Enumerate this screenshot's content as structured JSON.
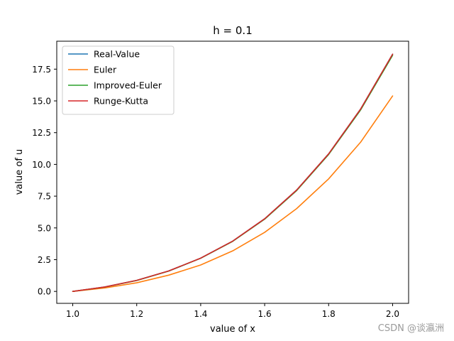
{
  "chart_data": {
    "type": "line",
    "title": "h = 0.1",
    "xlabel": "value of x",
    "ylabel": "value of u",
    "xlim": [
      0.95,
      2.05
    ],
    "ylim": [
      -0.94,
      19.7
    ],
    "xticks": [
      1.0,
      1.2,
      1.4,
      1.6,
      1.8,
      2.0
    ],
    "xtick_labels": [
      "1.0",
      "1.2",
      "1.4",
      "1.6",
      "1.8",
      "2.0"
    ],
    "yticks": [
      0.0,
      2.5,
      5.0,
      7.5,
      10.0,
      12.5,
      15.0,
      17.5
    ],
    "ytick_labels": [
      "0.0",
      "2.5",
      "5.0",
      "7.5",
      "10.0",
      "12.5",
      "15.0",
      "17.5"
    ],
    "grid": false,
    "legend_position": "top-left",
    "x": [
      1.0,
      1.1,
      1.2,
      1.3,
      1.4,
      1.5,
      1.6,
      1.7,
      1.8,
      1.9,
      2.0
    ],
    "series": [
      {
        "name": "Real-Value",
        "color": "#1f77b4",
        "values": [
          0.0,
          0.35,
          0.87,
          1.61,
          2.62,
          3.96,
          5.72,
          7.98,
          10.83,
          14.36,
          18.68
        ]
      },
      {
        "name": "Euler",
        "color": "#ff7f0e",
        "values": [
          0.0,
          0.27,
          0.68,
          1.28,
          2.08,
          3.19,
          4.65,
          6.52,
          8.86,
          11.75,
          15.39
        ]
      },
      {
        "name": "Improved-Euler",
        "color": "#2ca02c",
        "values": [
          0.0,
          0.34,
          0.86,
          1.6,
          2.61,
          3.94,
          5.69,
          7.94,
          10.78,
          14.29,
          18.59
        ]
      },
      {
        "name": "Runge-Kutta",
        "color": "#d62728",
        "values": [
          0.0,
          0.35,
          0.87,
          1.61,
          2.62,
          3.96,
          5.72,
          7.98,
          10.83,
          14.36,
          18.68
        ]
      }
    ]
  },
  "watermark": "CSDN @谈瀛洲"
}
